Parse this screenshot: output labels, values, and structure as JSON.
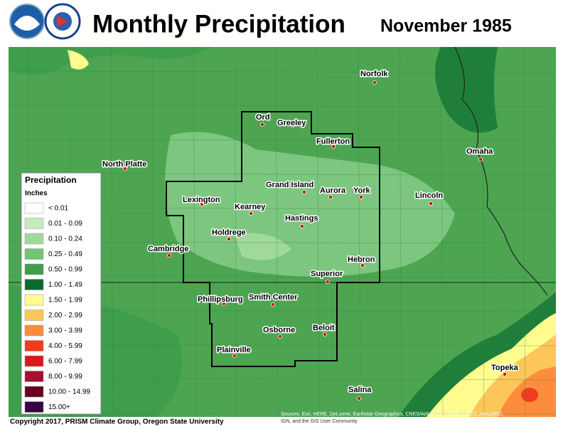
{
  "header": {
    "title": "Monthly Precipitation",
    "period": "November 1985"
  },
  "legend": {
    "title": "Precipitation",
    "units": "Inches",
    "items": [
      {
        "label": "< 0.01",
        "color": "#ffffff"
      },
      {
        "label": "0.01 - 0.09",
        "color": "#c7e9c0"
      },
      {
        "label": "0.10 - 0.24",
        "color": "#a1d99b"
      },
      {
        "label": "0.25 - 0.49",
        "color": "#74c476"
      },
      {
        "label": "0.50 - 0.99",
        "color": "#3f9e4c"
      },
      {
        "label": "1.00 - 1.49",
        "color": "#0a6b2d"
      },
      {
        "label": "1.50 - 1.99",
        "color": "#fffb8f"
      },
      {
        "label": "2.00 - 2.99",
        "color": "#fdc65a"
      },
      {
        "label": "3.00 - 3.99",
        "color": "#fd8d3c"
      },
      {
        "label": "4.00 - 5.99",
        "color": "#f03b20"
      },
      {
        "label": "6.00 - 7.99",
        "color": "#d7191c"
      },
      {
        "label": "8.00 - 9.99",
        "color": "#a50f31"
      },
      {
        "label": "10.00 - 14.99",
        "color": "#67001f"
      },
      {
        "label": "15.00+",
        "color": "#3a0045"
      }
    ]
  },
  "cities": [
    {
      "name": "Norfolk"
    },
    {
      "name": "Ord"
    },
    {
      "name": "Greeley"
    },
    {
      "name": "Fullerton"
    },
    {
      "name": "Omaha"
    },
    {
      "name": "North Platte"
    },
    {
      "name": "Grand Island"
    },
    {
      "name": "Aurora"
    },
    {
      "name": "York"
    },
    {
      "name": "Lincoln"
    },
    {
      "name": "Lexington"
    },
    {
      "name": "Kearney"
    },
    {
      "name": "Hastings"
    },
    {
      "name": "Holdrege"
    },
    {
      "name": "Cambridge"
    },
    {
      "name": "Hebron"
    },
    {
      "name": "Superior"
    },
    {
      "name": "Phillipsburg"
    },
    {
      "name": "Smith Center"
    },
    {
      "name": "Beloit"
    },
    {
      "name": "Osborne"
    },
    {
      "name": "Plainville"
    },
    {
      "name": "Topeka"
    },
    {
      "name": "Salina"
    }
  ],
  "footer": {
    "copyright": "Copyright 2017, PRISM Climate Group, Oregon State University",
    "attribution_1": "Sources: Esri, HERE, DeLorme, Earthstar Geographics, CNES/Airbus DS, USDA, USGS, AeroGRID,",
    "attribution_2": "IGN, and the GIS User Community"
  }
}
